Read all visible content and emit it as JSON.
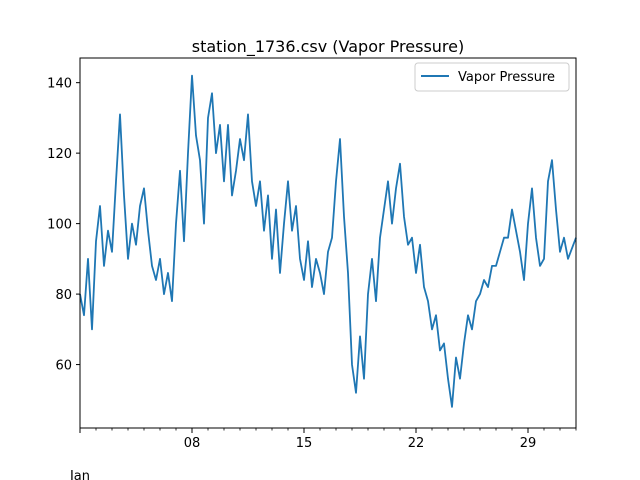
{
  "chart_data": {
    "type": "line",
    "title": "station_1736.csv (Vapor Pressure)",
    "xlabel": "",
    "ylabel": "",
    "x_range": [
      "2017-01-01",
      "2017-02-01"
    ],
    "ylim": [
      42,
      147
    ],
    "y_ticks": [
      60,
      80,
      100,
      120,
      140
    ],
    "x_major_ticks": [
      {
        "date": "2017-01-08",
        "label": "08"
      },
      {
        "date": "2017-01-15",
        "label": "15"
      },
      {
        "date": "2017-01-22",
        "label": "22"
      },
      {
        "date": "2017-01-29",
        "label": "29"
      }
    ],
    "x_month_label": "Jan",
    "grid": false,
    "legend_position": "top-right",
    "series": [
      {
        "name": "Vapor Pressure",
        "color": "#1f77b4",
        "points": [
          [
            "2017-01-01",
            80
          ],
          [
            "2017-01-01T06:00",
            74
          ],
          [
            "2017-01-01T12:00",
            90
          ],
          [
            "2017-01-01T18:00",
            70
          ],
          [
            "2017-01-02",
            95
          ],
          [
            "2017-01-02T06:00",
            105
          ],
          [
            "2017-01-02T12:00",
            88
          ],
          [
            "2017-01-02T18:00",
            98
          ],
          [
            "2017-01-03",
            92
          ],
          [
            "2017-01-03T06:00",
            112
          ],
          [
            "2017-01-03T12:00",
            131
          ],
          [
            "2017-01-03T18:00",
            108
          ],
          [
            "2017-01-04",
            90
          ],
          [
            "2017-01-04T06:00",
            100
          ],
          [
            "2017-01-04T12:00",
            94
          ],
          [
            "2017-01-04T18:00",
            105
          ],
          [
            "2017-01-05",
            110
          ],
          [
            "2017-01-05T06:00",
            98
          ],
          [
            "2017-01-05T12:00",
            88
          ],
          [
            "2017-01-05T18:00",
            84
          ],
          [
            "2017-01-06",
            90
          ],
          [
            "2017-01-06T06:00",
            80
          ],
          [
            "2017-01-06T12:00",
            86
          ],
          [
            "2017-01-06T18:00",
            78
          ],
          [
            "2017-01-07",
            100
          ],
          [
            "2017-01-07T06:00",
            115
          ],
          [
            "2017-01-07T12:00",
            95
          ],
          [
            "2017-01-07T18:00",
            120
          ],
          [
            "2017-01-08",
            142
          ],
          [
            "2017-01-08T06:00",
            125
          ],
          [
            "2017-01-08T12:00",
            118
          ],
          [
            "2017-01-08T18:00",
            100
          ],
          [
            "2017-01-09",
            130
          ],
          [
            "2017-01-09T06:00",
            137
          ],
          [
            "2017-01-09T12:00",
            120
          ],
          [
            "2017-01-09T18:00",
            128
          ],
          [
            "2017-01-10",
            112
          ],
          [
            "2017-01-10T06:00",
            128
          ],
          [
            "2017-01-10T12:00",
            108
          ],
          [
            "2017-01-10T18:00",
            115
          ],
          [
            "2017-01-11",
            124
          ],
          [
            "2017-01-11T06:00",
            118
          ],
          [
            "2017-01-11T12:00",
            131
          ],
          [
            "2017-01-11T18:00",
            112
          ],
          [
            "2017-01-12",
            105
          ],
          [
            "2017-01-12T06:00",
            112
          ],
          [
            "2017-01-12T12:00",
            98
          ],
          [
            "2017-01-12T18:00",
            108
          ],
          [
            "2017-01-13",
            90
          ],
          [
            "2017-01-13T06:00",
            104
          ],
          [
            "2017-01-13T12:00",
            86
          ],
          [
            "2017-01-13T18:00",
            100
          ],
          [
            "2017-01-14",
            112
          ],
          [
            "2017-01-14T06:00",
            98
          ],
          [
            "2017-01-14T12:00",
            105
          ],
          [
            "2017-01-14T18:00",
            90
          ],
          [
            "2017-01-15",
            84
          ],
          [
            "2017-01-15T06:00",
            95
          ],
          [
            "2017-01-15T12:00",
            82
          ],
          [
            "2017-01-15T18:00",
            90
          ],
          [
            "2017-01-16",
            86
          ],
          [
            "2017-01-16T06:00",
            80
          ],
          [
            "2017-01-16T12:00",
            92
          ],
          [
            "2017-01-16T18:00",
            96
          ],
          [
            "2017-01-17",
            112
          ],
          [
            "2017-01-17T06:00",
            124
          ],
          [
            "2017-01-17T12:00",
            102
          ],
          [
            "2017-01-17T18:00",
            86
          ],
          [
            "2017-01-18",
            60
          ],
          [
            "2017-01-18T06:00",
            52
          ],
          [
            "2017-01-18T12:00",
            68
          ],
          [
            "2017-01-18T18:00",
            56
          ],
          [
            "2017-01-19",
            80
          ],
          [
            "2017-01-19T06:00",
            90
          ],
          [
            "2017-01-19T12:00",
            78
          ],
          [
            "2017-01-19T18:00",
            96
          ],
          [
            "2017-01-20",
            104
          ],
          [
            "2017-01-20T06:00",
            112
          ],
          [
            "2017-01-20T12:00",
            100
          ],
          [
            "2017-01-20T18:00",
            110
          ],
          [
            "2017-01-21",
            117
          ],
          [
            "2017-01-21T06:00",
            102
          ],
          [
            "2017-01-21T12:00",
            94
          ],
          [
            "2017-01-21T18:00",
            96
          ],
          [
            "2017-01-22",
            86
          ],
          [
            "2017-01-22T06:00",
            94
          ],
          [
            "2017-01-22T12:00",
            82
          ],
          [
            "2017-01-22T18:00",
            78
          ],
          [
            "2017-01-23",
            70
          ],
          [
            "2017-01-23T06:00",
            74
          ],
          [
            "2017-01-23T12:00",
            64
          ],
          [
            "2017-01-23T18:00",
            66
          ],
          [
            "2017-01-24",
            56
          ],
          [
            "2017-01-24T06:00",
            48
          ],
          [
            "2017-01-24T12:00",
            62
          ],
          [
            "2017-01-24T18:00",
            56
          ],
          [
            "2017-01-25",
            66
          ],
          [
            "2017-01-25T06:00",
            74
          ],
          [
            "2017-01-25T12:00",
            70
          ],
          [
            "2017-01-25T18:00",
            78
          ],
          [
            "2017-01-26",
            80
          ],
          [
            "2017-01-26T06:00",
            84
          ],
          [
            "2017-01-26T12:00",
            82
          ],
          [
            "2017-01-26T18:00",
            88
          ],
          [
            "2017-01-27",
            88
          ],
          [
            "2017-01-27T06:00",
            92
          ],
          [
            "2017-01-27T12:00",
            96
          ],
          [
            "2017-01-27T18:00",
            96
          ],
          [
            "2017-01-28",
            104
          ],
          [
            "2017-01-28T06:00",
            98
          ],
          [
            "2017-01-28T12:00",
            92
          ],
          [
            "2017-01-28T18:00",
            84
          ],
          [
            "2017-01-29",
            100
          ],
          [
            "2017-01-29T06:00",
            110
          ],
          [
            "2017-01-29T12:00",
            96
          ],
          [
            "2017-01-29T18:00",
            88
          ],
          [
            "2017-01-30",
            90
          ],
          [
            "2017-01-30T06:00",
            112
          ],
          [
            "2017-01-30T12:00",
            118
          ],
          [
            "2017-01-30T18:00",
            104
          ],
          [
            "2017-01-31",
            92
          ],
          [
            "2017-01-31T06:00",
            96
          ],
          [
            "2017-01-31T12:00",
            90
          ],
          [
            "2017-02-01",
            96
          ]
        ]
      }
    ]
  }
}
